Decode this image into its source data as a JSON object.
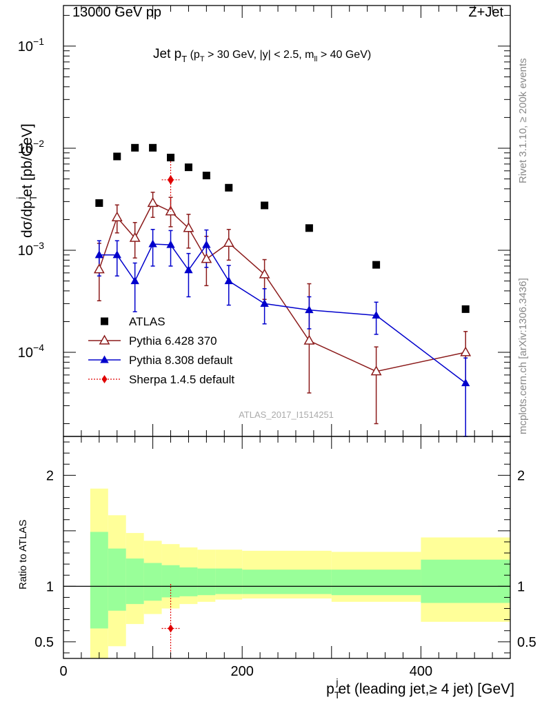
{
  "header": {
    "left": "13000 GeV pp",
    "right": "Z+Jet"
  },
  "side_labels": {
    "rivet": "Rivet 3.1.10, ≥ 200k events",
    "mcplots": "mcplots.cern.ch [arXiv:1306.3436]"
  },
  "watermark": "ATLAS_2017_I1514251",
  "main_title": {
    "jet": "Jet p",
    "jet_sub": "T",
    "cuts_a": " (p",
    "cuts_a_sub": "T",
    "cuts_b": " > 30 GeV, |y| < 2.5, m",
    "cuts_b_sub": "ll",
    "cuts_c": " > 40 GeV)"
  },
  "ylabel_top": {
    "a": "dσ/dp",
    "a_sub": "T",
    "a_sup": "j",
    "b": "et [pb/GeV]"
  },
  "ylabel_bottom": "Ratio to ATLAS",
  "xlabel": {
    "a": "p",
    "a_sub": "T",
    "a_sup": "j",
    "b": "et (leading jet,≥ 4 jet) [GeV]"
  },
  "top_ticks": [
    {
      "value": 0.1,
      "label": "10",
      "exp": "−1"
    },
    {
      "value": 0.01,
      "label": "10",
      "exp": "−2"
    },
    {
      "value": 0.001,
      "label": "10",
      "exp": "−3"
    },
    {
      "value": 0.0001,
      "label": "10",
      "exp": "−4"
    }
  ],
  "ratio_ticks": [
    {
      "value": 0.5,
      "label": "0.5"
    },
    {
      "value": 1,
      "label": "1"
    },
    {
      "value": 2,
      "label": "2"
    }
  ],
  "x_ticks": [
    {
      "value": 0,
      "label": "0"
    },
    {
      "value": 200,
      "label": "200"
    },
    {
      "value": 400,
      "label": "400"
    }
  ],
  "chart_data": {
    "type": "scatter",
    "x_range": [
      0,
      500
    ],
    "y_range_top": [
      1.5e-05,
      0.25
    ],
    "y_scale_top": "log",
    "y_range_ratio": [
      0.35,
      2.35
    ],
    "legend_position": "lower-left",
    "bins": [
      30,
      50,
      70,
      90,
      110,
      130,
      150,
      170,
      200,
      250,
      300,
      400,
      500
    ],
    "series": [
      {
        "name": "ATLAS",
        "color": "#000000",
        "marker": "square",
        "x": [
          40,
          60,
          80,
          100,
          120,
          140,
          160,
          185,
          225,
          275,
          350,
          450
        ],
        "y": [
          0.0029,
          0.0083,
          0.0101,
          0.0101,
          0.0081,
          0.0065,
          0.0054,
          0.0041,
          0.00275,
          0.00165,
          0.00072,
          0.000265
        ]
      },
      {
        "name": "Pythia 6.428 370",
        "color": "#8b1a1a",
        "marker": "open-triangle",
        "x": [
          40,
          60,
          80,
          100,
          120,
          140,
          160,
          185,
          225,
          275,
          350,
          450
        ],
        "y": [
          0.00065,
          0.0021,
          0.00132,
          0.0029,
          0.0024,
          0.00165,
          0.00082,
          0.00118,
          0.00058,
          0.00013,
          6.5e-05,
          0.0001
        ],
        "err_lo": [
          0.00033,
          0.00062,
          0.00048,
          0.0008,
          0.0007,
          0.0006,
          0.00037,
          0.00038,
          0.00025,
          9e-05,
          4.5e-05,
          5e-05
        ],
        "err_hi": [
          0.00052,
          0.00068,
          0.00055,
          0.0008,
          0.0009,
          0.0006,
          0.00055,
          0.00042,
          0.00023,
          0.00034,
          4.8e-05,
          6e-05
        ]
      },
      {
        "name": "Pythia 8.308 default",
        "color": "#0000cc",
        "marker": "filled-triangle",
        "x": [
          40,
          60,
          80,
          100,
          120,
          140,
          160,
          185,
          225,
          275,
          350,
          450
        ],
        "y": [
          0.0009,
          0.0009,
          0.0005,
          0.00115,
          0.00113,
          0.00064,
          0.00113,
          0.0005,
          0.0003,
          0.00026,
          0.00023,
          5e-05
        ],
        "err_lo": [
          0.00034,
          0.00034,
          0.00025,
          0.00045,
          0.00043,
          0.00029,
          0.00045,
          0.00021,
          0.00011,
          9e-05,
          8e-05,
          3.6e-05
        ],
        "err_hi": [
          0.00034,
          0.00034,
          0.00025,
          0.00045,
          0.00043,
          0.00029,
          0.00045,
          0.00021,
          0.00012,
          9e-05,
          8e-05,
          3.8e-05
        ]
      },
      {
        "name": "Sherpa 1.4.5 default",
        "color": "#e00000",
        "marker": "diamond",
        "x": [
          120
        ],
        "y": [
          0.0049
        ],
        "x_err": [
          10
        ],
        "err_lo": [
          0.0025
        ],
        "err_hi": [
          0.003
        ]
      }
    ],
    "ratio_bands": {
      "yellow_lo": [
        0.35,
        0.46,
        0.66,
        0.75,
        0.8,
        0.84,
        0.86,
        0.88,
        0.89,
        0.89,
        0.86,
        0.68
      ],
      "yellow_hi": [
        1.88,
        1.64,
        1.48,
        1.41,
        1.38,
        1.35,
        1.33,
        1.33,
        1.32,
        1.32,
        1.31,
        1.44
      ],
      "green_lo": [
        0.62,
        0.78,
        0.84,
        0.87,
        0.9,
        0.91,
        0.92,
        0.93,
        0.93,
        0.93,
        0.92,
        0.85
      ],
      "green_hi": [
        1.49,
        1.34,
        1.25,
        1.21,
        1.19,
        1.17,
        1.16,
        1.16,
        1.15,
        1.15,
        1.15,
        1.24
      ]
    },
    "ratio_sherpa": {
      "x": 120,
      "y": 0.62,
      "x_err": 10,
      "err_lo": 0.3,
      "err_hi": 0.4
    }
  }
}
